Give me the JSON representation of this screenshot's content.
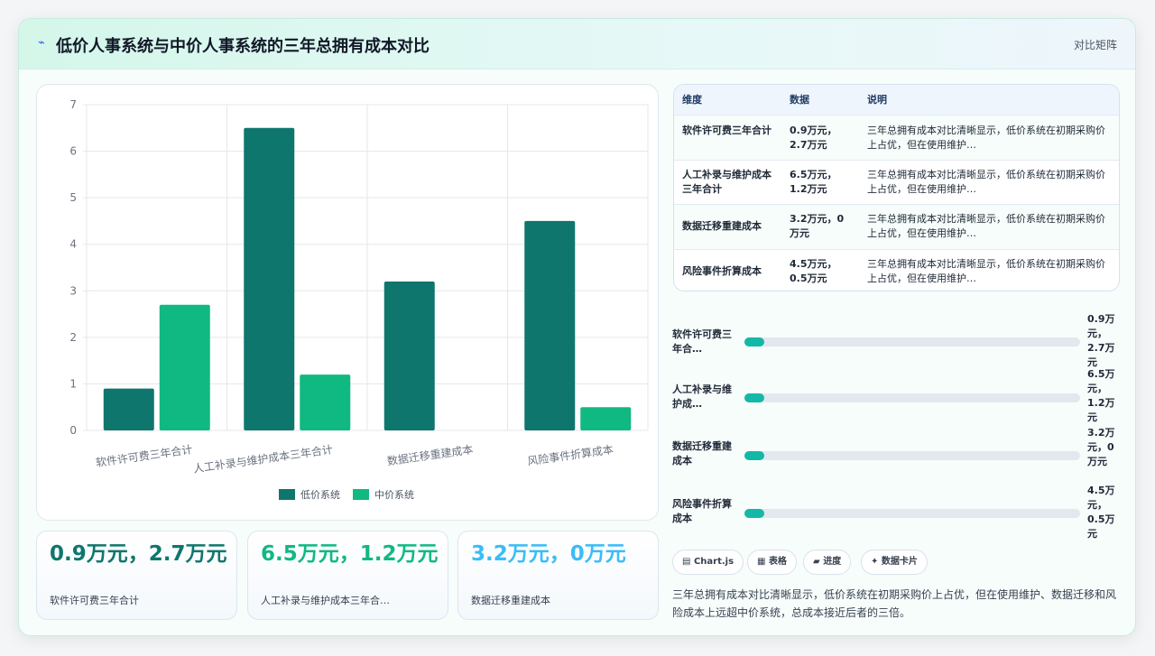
{
  "header": {
    "icon": "bolt-icon",
    "title": "低价人事系统与中价人事系统的三年总拥有成本对比",
    "mode": "对比矩阵"
  },
  "chart_data": {
    "type": "bar",
    "categories": [
      "软件许可费三年合计",
      "人工补录与维护成本三年合计",
      "数据迁移重建成本",
      "风险事件折算成本"
    ],
    "series": [
      {
        "name": "低价系统",
        "values": [
          0.9,
          6.5,
          3.2,
          4.5
        ],
        "color": "#0f766e"
      },
      {
        "name": "中价系统",
        "values": [
          2.7,
          1.2,
          0,
          0.5
        ],
        "color": "#10b981"
      }
    ],
    "ylim": [
      0,
      7
    ],
    "yticks": [
      0,
      1,
      2,
      3,
      4,
      5,
      6,
      7
    ],
    "grid": true,
    "legend": "bottom"
  },
  "stats": [
    {
      "value": "0.9万元，2.7万元",
      "label": "软件许可费三年合计",
      "color": "#0f766e"
    },
    {
      "value": "6.5万元，1.2万元",
      "label": "人工补录与维护成本三年合…",
      "color": "#10b981"
    },
    {
      "value": "3.2万元，0万元",
      "label": "数据迁移重建成本",
      "color": "#38bdf8"
    }
  ],
  "table": {
    "headers": [
      "维度",
      "数据",
      "说明"
    ],
    "rows": [
      {
        "dim": "软件许可费三年合计",
        "data": "0.9万元，2.7万元",
        "note": "三年总拥有成本对比清晰显示，低价系统在初期采购价上占优，但在使用维护…"
      },
      {
        "dim": "人工补录与维护成本三年合计",
        "data": "6.5万元，1.2万元",
        "note": "三年总拥有成本对比清晰显示，低价系统在初期采购价上占优，但在使用维护…"
      },
      {
        "dim": "数据迁移重建成本",
        "data": "3.2万元，0万元",
        "note": "三年总拥有成本对比清晰显示，低价系统在初期采购价上占优，但在使用维护…"
      },
      {
        "dim": "风险事件折算成本",
        "data": "4.5万元，0.5万元",
        "note": "三年总拥有成本对比清晰显示，低价系统在初期采购价上占优，但在使用维护…"
      }
    ]
  },
  "progress": [
    {
      "label": "软件许可费三年合…",
      "value": "0.9万元，2.7万元",
      "fraction": 0.06
    },
    {
      "label": "人工补录与维护成…",
      "value": "6.5万元，1.2万元",
      "fraction": 0.06
    },
    {
      "label": "数据迁移重建成本",
      "value": "3.2万元，0万元",
      "fraction": 0.06
    },
    {
      "label": "风险事件折算成本",
      "value": "4.5万元，0.5万元",
      "fraction": 0.06
    }
  ],
  "chips": [
    {
      "icon": "chart-icon",
      "label": "Chart.js"
    },
    {
      "icon": "table-icon",
      "label": "表格"
    },
    {
      "icon": "progress-icon",
      "label": "进度"
    },
    {
      "icon": "sparkle-icon",
      "label": "数据卡片"
    }
  ],
  "summary": "三年总拥有成本对比清晰显示，低价系统在初期采购价上占优，但在使用维护、数据迁移和风险成本上远超中价系统，总成本接近后者的三倍。"
}
